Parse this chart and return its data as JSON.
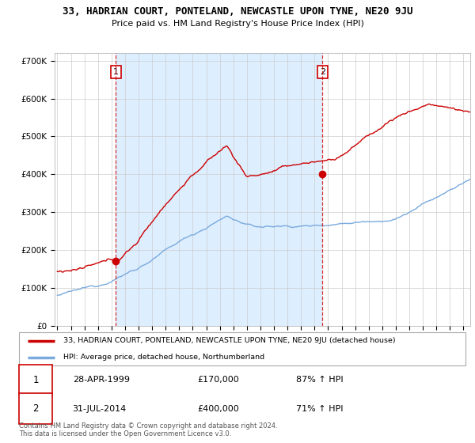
{
  "title": "33, HADRIAN COURT, PONTELAND, NEWCASTLE UPON TYNE, NE20 9JU",
  "subtitle": "Price paid vs. HM Land Registry's House Price Index (HPI)",
  "ylim": [
    0,
    720000
  ],
  "yticks": [
    0,
    100000,
    200000,
    300000,
    400000,
    500000,
    600000,
    700000
  ],
  "ytick_labels": [
    "£0",
    "£100K",
    "£200K",
    "£300K",
    "£400K",
    "£500K",
    "£600K",
    "£700K"
  ],
  "xlim_start": 1994.8,
  "xlim_end": 2025.5,
  "purchase1_x": 1999.32,
  "purchase1_y": 170000,
  "purchase2_x": 2014.58,
  "purchase2_y": 400000,
  "legend_line1": "33, HADRIAN COURT, PONTELAND, NEWCASTLE UPON TYNE, NE20 9JU (detached house)",
  "legend_line2": "HPI: Average price, detached house, Northumberland",
  "annotation1_date": "28-APR-1999",
  "annotation1_price": "£170,000",
  "annotation1_hpi": "87% ↑ HPI",
  "annotation2_date": "31-JUL-2014",
  "annotation2_price": "£400,000",
  "annotation2_hpi": "71% ↑ HPI",
  "footer": "Contains HM Land Registry data © Crown copyright and database right 2024.\nThis data is licensed under the Open Government Licence v3.0.",
  "price_line_color": "#cc0000",
  "hpi_line_color": "#7aaadd",
  "grid_color": "#cccccc",
  "dashed_line_color": "#cc0000",
  "box_color": "#cc0000",
  "shade_color": "#ddeeff",
  "background_color": "#ffffff"
}
